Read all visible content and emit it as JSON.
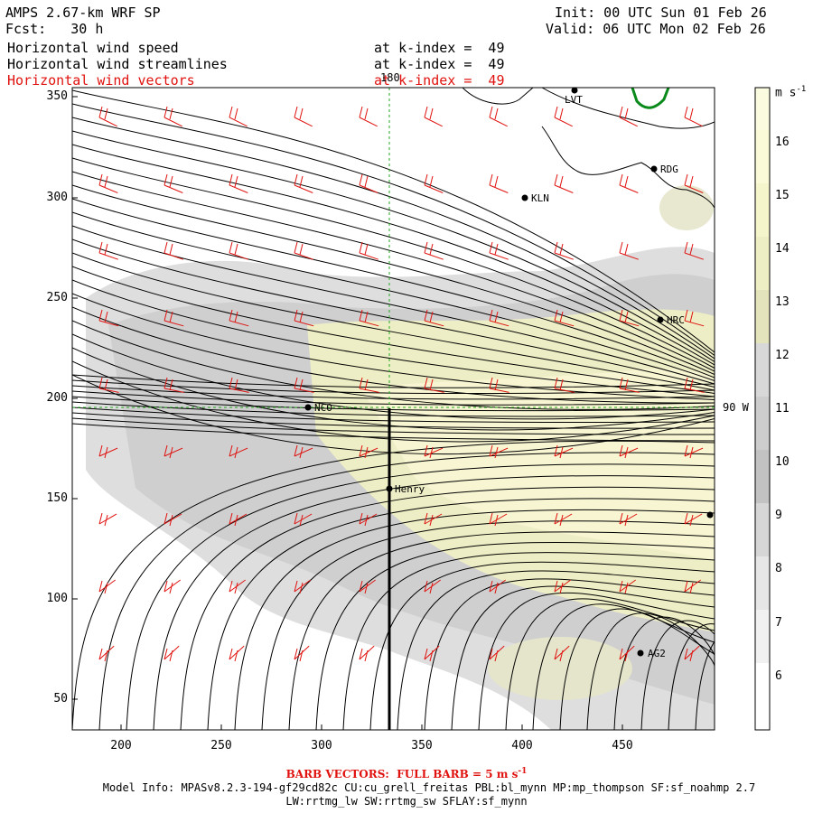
{
  "header": {
    "title_left": "AMPS 2.67-km WRF SP",
    "forecast": "Fcst:   30 h",
    "init": "Init: 00 UTC Sun 01 Feb 26",
    "valid": "Valid: 06 UTC Mon 02 Feb 26",
    "fields": [
      {
        "name": "Horizontal wind speed",
        "level": "at k-index =  49"
      },
      {
        "name": "Horizontal wind streamlines",
        "level": "at k-index =  49"
      },
      {
        "name": "Horizontal wind vectors",
        "level": "at k-index =  49"
      }
    ]
  },
  "map": {
    "x_ticks": [
      "200",
      "250",
      "300",
      "350",
      "400",
      "450"
    ],
    "y_ticks": [
      "350",
      "300",
      "250",
      "200",
      "150",
      "100",
      "50"
    ],
    "meridian_label": "180",
    "parallel_label": "90 W",
    "stations": [
      "LVT",
      "RDG",
      "KLN",
      "HRC",
      "NCO",
      "Henry",
      "AG2"
    ]
  },
  "colorbar": {
    "units": "m s",
    "units_exp": "-1",
    "ticks": [
      "16",
      "15",
      "14",
      "13",
      "12",
      "11",
      "10",
      "9",
      "8",
      "7",
      "6"
    ],
    "colors": [
      "#fbfbe0",
      "#fafad8",
      "#f5f5cc",
      "#eeeec4",
      "#e4e4bc",
      "#d8d8d8",
      "#cdcdcd",
      "#c2c2c2",
      "#d6d6d6",
      "#e6e6e6",
      "#f1f1f1",
      "#ffffff"
    ]
  },
  "footer": {
    "barb_note_1": "BARB VECTORS:  FULL BARB = 5 m s",
    "barb_exp": "-1",
    "model_line": "Model Info: MPASv8.2.3-194-gf29cd82c CU:cu_grell_freitas PBL:bl_mynn MP:mp_thompson SF:sf_noahmp 2.7",
    "model_line_2": "LW:rrtmg_lw SW:rrtmg_sw SFLAY:sf_mynn"
  }
}
